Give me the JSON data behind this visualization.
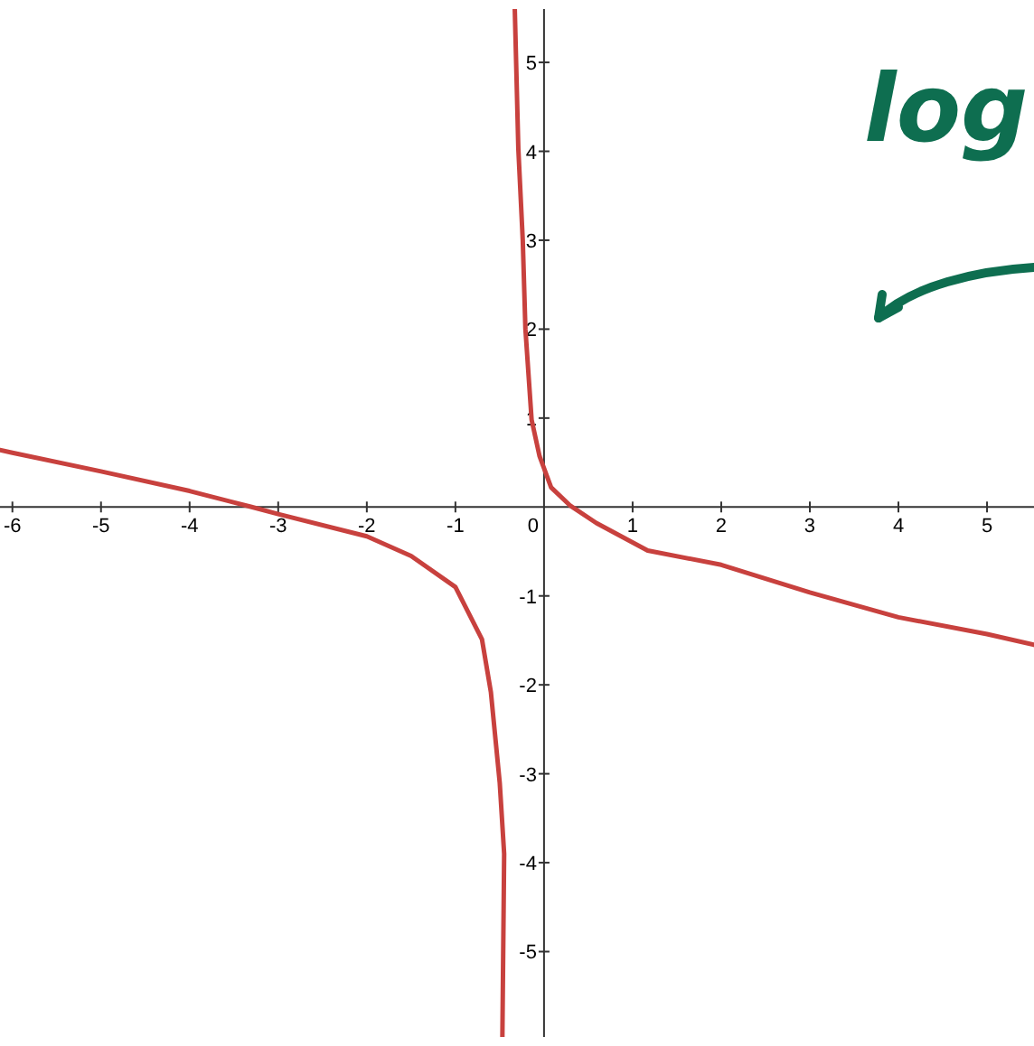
{
  "chart_data": {
    "type": "line",
    "xlim": [
      -6.14,
      5.53
    ],
    "ylim": [
      -5.96,
      5.6
    ],
    "xticks": [
      -6,
      -5,
      -4,
      -3,
      -2,
      -1,
      0,
      1,
      2,
      3,
      4,
      5
    ],
    "yticks": [
      -5,
      -4,
      -3,
      -2,
      -1,
      1,
      2,
      3,
      4,
      5
    ],
    "grid": false,
    "marker": "none",
    "line_style": "solid",
    "annotations": [
      "log"
    ],
    "series": [
      {
        "color": "#c8413e",
        "x": [
          -6.14,
          -6,
          -5,
          -4,
          -3.3,
          -3,
          -2,
          -1.5,
          -1,
          -0.7,
          -0.6,
          -0.5,
          -0.45,
          -0.47
        ],
        "values": [
          0.64,
          0.61,
          0.4,
          0.18,
          0,
          -0.08,
          -0.33,
          -0.55,
          -0.9,
          -1.49,
          -2.08,
          -3.1,
          -3.9,
          -5.96
        ]
      },
      {
        "color": "#c8413e",
        "x": [
          -0.33,
          -0.29,
          -0.24,
          -0.21,
          -0.14,
          -0.05,
          0.08,
          0.29,
          0.59,
          1.17,
          2,
          3,
          4,
          5,
          5.53
        ],
        "values": [
          5.6,
          4.03,
          3,
          2,
          0.98,
          0.57,
          0.22,
          0.02,
          -0.18,
          -0.49,
          -0.65,
          -0.96,
          -1.24,
          -1.43,
          -1.55
        ]
      }
    ]
  }
}
